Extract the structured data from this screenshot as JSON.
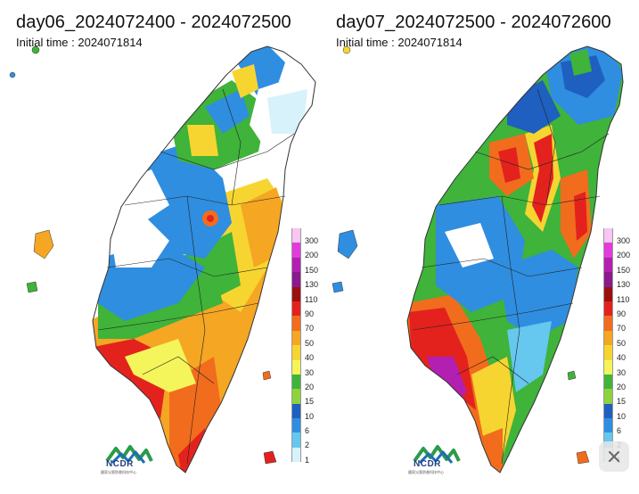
{
  "panels": [
    {
      "title": "day06_2024072400 - 2024072500",
      "subtitle": "Initial time : 2024071814"
    },
    {
      "title": "day07_2024072500 - 2024072600",
      "subtitle": "Initial time : 2024071814"
    }
  ],
  "legend": {
    "labels": [
      "300",
      "200",
      "150",
      "130",
      "110",
      "90",
      "70",
      "50",
      "40",
      "30",
      "20",
      "15",
      "10",
      "6",
      "2",
      "1"
    ],
    "colors": [
      "#f7c6f2",
      "#e23bdc",
      "#b31fb1",
      "#8a1a8e",
      "#9c1010",
      "#e3221e",
      "#f26c1d",
      "#f5a623",
      "#f7d531",
      "#f4f55a",
      "#3fb33a",
      "#8fd33c",
      "#1f5fc0",
      "#2f8ee0",
      "#66c7ef",
      "#d7f2fb"
    ]
  },
  "logo": {
    "text": "NCDR",
    "subtext": "國家災害防救科技中心"
  },
  "icons": {
    "logo_mark": "ncdr-logo-icon",
    "close": "close-icon"
  }
}
